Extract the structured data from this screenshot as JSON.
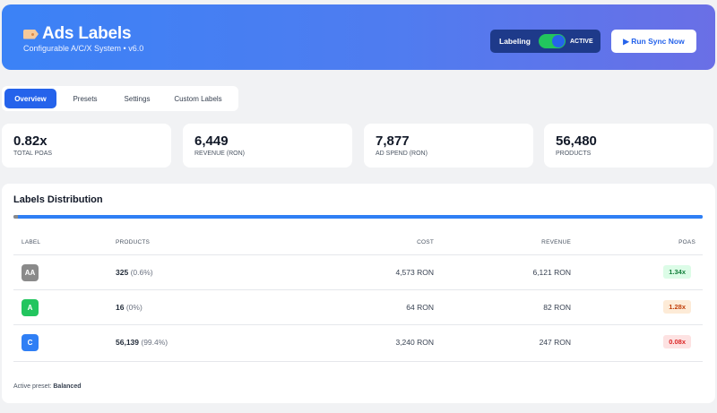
{
  "header": {
    "title": "Ads Labels",
    "subtitle": "Configurable A/C/X System • v6.0",
    "labeling_label": "Labeling",
    "status": "ACTIVE",
    "run_button": "▶ Run Sync Now",
    "toggle_on": true
  },
  "tabs": [
    {
      "label": "Overview",
      "active": true
    },
    {
      "label": "Presets",
      "active": false
    },
    {
      "label": "Settings",
      "active": false
    },
    {
      "label": "Custom Labels",
      "active": false
    }
  ],
  "stats": [
    {
      "value": "0.82x",
      "label": "TOTAL POAS"
    },
    {
      "value": "6,449",
      "label": "REVENUE (RON)"
    },
    {
      "value": "7,877",
      "label": "AD SPEND (RON)"
    },
    {
      "value": "56,480",
      "label": "PRODUCTS"
    }
  ],
  "distribution": {
    "title": "Labels Distribution",
    "segments": [
      {
        "label": "AA",
        "share": 0.006,
        "color": "#8a8a8a"
      },
      {
        "label": "A",
        "share": 0.0,
        "color": "#22c55e"
      },
      {
        "label": "C",
        "share": 0.994,
        "color": "#2f7ff5"
      }
    ]
  },
  "table": {
    "headers": {
      "label": "LABEL",
      "products": "PRODUCTS",
      "cost": "COST",
      "revenue": "REVENUE",
      "poas": "POAS"
    },
    "rows": [
      {
        "label": "AA",
        "badge_color": "#8a8a8a",
        "products": "325",
        "pct": "(0.6%)",
        "cost": "4,573 RON",
        "revenue": "6,121 RON",
        "poas": "1.34x",
        "poas_bg": "#dcfce7",
        "poas_color": "#15803d"
      },
      {
        "label": "A",
        "badge_color": "#22c55e",
        "products": "16",
        "pct": "(0%)",
        "cost": "64 RON",
        "revenue": "82 RON",
        "poas": "1.28x",
        "poas_bg": "#fdebd7",
        "poas_color": "#c2410c"
      },
      {
        "label": "C",
        "badge_color": "#2f7ff5",
        "products": "56,139",
        "pct": "(99.4%)",
        "cost": "3,240 RON",
        "revenue": "247 RON",
        "poas": "0.08x",
        "poas_bg": "#fde2e2",
        "poas_color": "#dc2626"
      }
    ]
  },
  "footer": {
    "preset_label": "Active preset:",
    "preset_value": "Balanced"
  }
}
